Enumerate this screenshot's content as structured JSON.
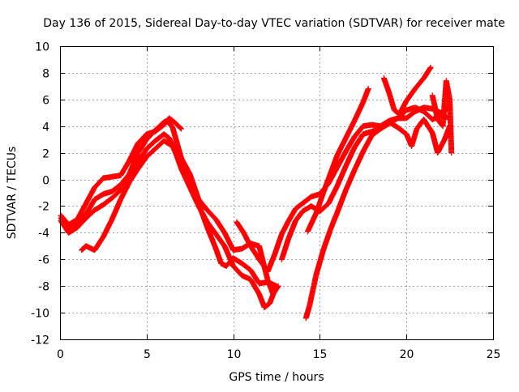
{
  "chart_data": {
    "type": "scatter",
    "title": "Day 136 of 2015, Sidereal Day-to-day VTEC variation (SDTVAR) for receiver mate",
    "xlabel": "GPS time / hours",
    "ylabel": "SDTVAR / TECUs",
    "xlim": [
      0,
      25
    ],
    "ylim": [
      -12,
      10
    ],
    "x_ticks": [
      0,
      5,
      10,
      15,
      20,
      25
    ],
    "y_ticks": [
      -12,
      -10,
      -8,
      -6,
      -4,
      -2,
      0,
      2,
      4,
      6,
      8,
      10
    ],
    "grid": true,
    "marker": "plus",
    "color": "#ff0000",
    "series": [
      {
        "points": [
          [
            0.05,
            -2.7
          ],
          [
            0.5,
            -3.4
          ],
          [
            1.0,
            -3.0
          ],
          [
            1.5,
            -1.8
          ],
          [
            2.0,
            -0.6
          ],
          [
            2.5,
            0.1
          ],
          [
            3.0,
            0.2
          ],
          [
            3.5,
            0.3
          ],
          [
            4.0,
            1.4
          ],
          [
            4.5,
            2.7
          ],
          [
            5.0,
            3.4
          ],
          [
            5.5,
            3.6
          ],
          [
            6.0,
            4.1
          ],
          [
            6.3,
            4.6
          ],
          [
            6.6,
            4.3
          ],
          [
            7.0,
            3.8
          ]
        ]
      },
      {
        "points": [
          [
            0.05,
            -2.9
          ],
          [
            0.5,
            -3.7
          ],
          [
            1.0,
            -3.3
          ],
          [
            1.5,
            -2.6
          ],
          [
            2.0,
            -1.5
          ],
          [
            2.5,
            -1.1
          ],
          [
            3.0,
            -0.9
          ],
          [
            3.5,
            -0.4
          ],
          [
            4.0,
            0.4
          ],
          [
            4.5,
            2.0
          ],
          [
            5.0,
            3.0
          ],
          [
            5.5,
            3.7
          ],
          [
            6.0,
            4.3
          ],
          [
            6.2,
            4.4
          ],
          [
            6.5,
            3.9
          ],
          [
            7.0,
            1.6
          ],
          [
            7.5,
            0.4
          ],
          [
            8.0,
            -1.5
          ],
          [
            8.5,
            -2.3
          ],
          [
            9.0,
            -3.0
          ],
          [
            9.5,
            -4.0
          ],
          [
            10.0,
            -5.3
          ],
          [
            10.5,
            -5.2
          ],
          [
            11.0,
            -4.8
          ],
          [
            11.5,
            -5.0
          ],
          [
            12.0,
            -7.6
          ],
          [
            12.3,
            -8.6
          ],
          [
            12.6,
            -8.0
          ]
        ]
      },
      {
        "points": [
          [
            0.05,
            -3.1
          ],
          [
            0.5,
            -4.0
          ],
          [
            1.0,
            -3.6
          ],
          [
            1.5,
            -2.9
          ],
          [
            2.0,
            -2.3
          ],
          [
            2.5,
            -1.9
          ],
          [
            3.0,
            -1.4
          ],
          [
            3.5,
            -0.8
          ],
          [
            4.0,
            -0.1
          ],
          [
            4.5,
            1.3
          ],
          [
            5.0,
            2.3
          ],
          [
            5.5,
            2.9
          ],
          [
            6.0,
            3.4
          ],
          [
            6.3,
            3.1
          ],
          [
            6.6,
            2.3
          ],
          [
            7.0,
            0.8
          ],
          [
            7.5,
            -0.6
          ],
          [
            8.0,
            -2.0
          ],
          [
            8.5,
            -3.2
          ],
          [
            9.0,
            -4.1
          ],
          [
            9.5,
            -5.0
          ],
          [
            10.0,
            -6.5
          ],
          [
            10.5,
            -7.2
          ],
          [
            11.0,
            -7.5
          ],
          [
            11.5,
            -8.6
          ],
          [
            11.8,
            -9.6
          ],
          [
            12.1,
            -9.3
          ],
          [
            12.5,
            -8.0
          ]
        ]
      },
      {
        "points": [
          [
            1.25,
            -5.3
          ],
          [
            1.5,
            -5.0
          ],
          [
            2.0,
            -5.3
          ],
          [
            2.5,
            -4.3
          ],
          [
            3.0,
            -3.0
          ],
          [
            3.5,
            -1.5
          ],
          [
            4.0,
            -0.2
          ],
          [
            4.5,
            0.8
          ],
          [
            5.0,
            1.7
          ],
          [
            5.5,
            2.3
          ],
          [
            6.0,
            2.9
          ],
          [
            6.5,
            2.5
          ],
          [
            7.0,
            1.0
          ],
          [
            7.5,
            -0.4
          ],
          [
            8.0,
            -1.8
          ],
          [
            8.5,
            -3.6
          ],
          [
            9.0,
            -5.2
          ],
          [
            9.3,
            -6.3
          ],
          [
            9.6,
            -6.5
          ],
          [
            10.0,
            -5.9
          ],
          [
            10.5,
            -6.3
          ],
          [
            11.0,
            -6.8
          ],
          [
            11.5,
            -7.8
          ],
          [
            12.0,
            -7.7
          ],
          [
            12.5,
            -8.0
          ]
        ]
      },
      {
        "points": [
          [
            10.2,
            -3.2
          ],
          [
            10.6,
            -4.0
          ],
          [
            11.0,
            -5.0
          ],
          [
            11.5,
            -6.0
          ],
          [
            12.0,
            -6.9
          ],
          [
            12.4,
            -5.6
          ],
          [
            12.8,
            -4.1
          ],
          [
            13.2,
            -3.1
          ],
          [
            13.6,
            -2.2
          ],
          [
            14.0,
            -1.8
          ],
          [
            14.5,
            -1.3
          ],
          [
            15.0,
            -1.1
          ],
          [
            15.5,
            -0.3
          ],
          [
            16.0,
            0.9
          ],
          [
            16.5,
            2.1
          ],
          [
            17.0,
            3.2
          ],
          [
            17.5,
            4.0
          ],
          [
            18.0,
            4.1
          ],
          [
            18.5,
            4.0
          ],
          [
            19.0,
            4.4
          ],
          [
            19.5,
            4.6
          ],
          [
            20.0,
            4.6
          ],
          [
            20.5,
            5.1
          ],
          [
            21.0,
            5.4
          ],
          [
            21.5,
            5.3
          ],
          [
            22.0,
            5.0
          ],
          [
            22.5,
            5.4
          ]
        ]
      },
      {
        "points": [
          [
            12.8,
            -6.0
          ],
          [
            13.2,
            -4.4
          ],
          [
            13.6,
            -3.1
          ],
          [
            14.0,
            -2.4
          ],
          [
            14.5,
            -2.0
          ],
          [
            15.0,
            -2.4
          ],
          [
            15.5,
            -1.8
          ],
          [
            16.0,
            -0.5
          ],
          [
            16.5,
            1.0
          ],
          [
            17.0,
            2.4
          ],
          [
            17.5,
            3.4
          ],
          [
            18.0,
            3.6
          ],
          [
            18.5,
            3.8
          ],
          [
            19.0,
            4.2
          ],
          [
            19.5,
            4.6
          ],
          [
            20.0,
            5.2
          ],
          [
            20.5,
            5.4
          ],
          [
            21.0,
            5.1
          ],
          [
            21.5,
            4.5
          ],
          [
            22.0,
            4.8
          ],
          [
            22.5,
            4.6
          ]
        ]
      },
      {
        "points": [
          [
            14.2,
            -10.4
          ],
          [
            14.4,
            -9.5
          ],
          [
            14.8,
            -7.1
          ],
          [
            15.2,
            -5.3
          ],
          [
            15.6,
            -3.8
          ],
          [
            16.0,
            -2.5
          ],
          [
            16.5,
            -0.8
          ],
          [
            17.0,
            0.7
          ],
          [
            17.5,
            2.1
          ],
          [
            18.0,
            3.3
          ],
          [
            18.5,
            3.8
          ],
          [
            19.0,
            4.3
          ],
          [
            19.5,
            3.9
          ],
          [
            20.0,
            3.4
          ],
          [
            20.3,
            2.5
          ],
          [
            20.6,
            3.8
          ],
          [
            21.0,
            4.5
          ],
          [
            21.5,
            3.5
          ],
          [
            21.8,
            2.0
          ],
          [
            22.2,
            3.0
          ],
          [
            22.5,
            4.0
          ]
        ]
      },
      {
        "points": [
          [
            14.3,
            -3.9
          ],
          [
            14.8,
            -2.5
          ],
          [
            15.2,
            -1.0
          ],
          [
            15.6,
            0.4
          ],
          [
            16.0,
            1.8
          ],
          [
            16.5,
            3.1
          ],
          [
            17.0,
            4.4
          ],
          [
            17.5,
            5.8
          ],
          [
            17.8,
            6.8
          ]
        ]
      },
      {
        "points": [
          [
            18.7,
            7.6
          ],
          [
            19.0,
            6.5
          ],
          [
            19.3,
            5.2
          ],
          [
            19.6,
            4.9
          ],
          [
            20.0,
            5.9
          ],
          [
            20.5,
            6.8
          ],
          [
            21.0,
            7.6
          ],
          [
            21.4,
            8.4
          ]
        ]
      },
      {
        "points": [
          [
            21.5,
            6.3
          ],
          [
            21.8,
            4.5
          ],
          [
            22.1,
            4.0
          ],
          [
            22.3,
            7.4
          ],
          [
            22.5,
            6.0
          ],
          [
            22.6,
            2.0
          ]
        ]
      }
    ]
  }
}
